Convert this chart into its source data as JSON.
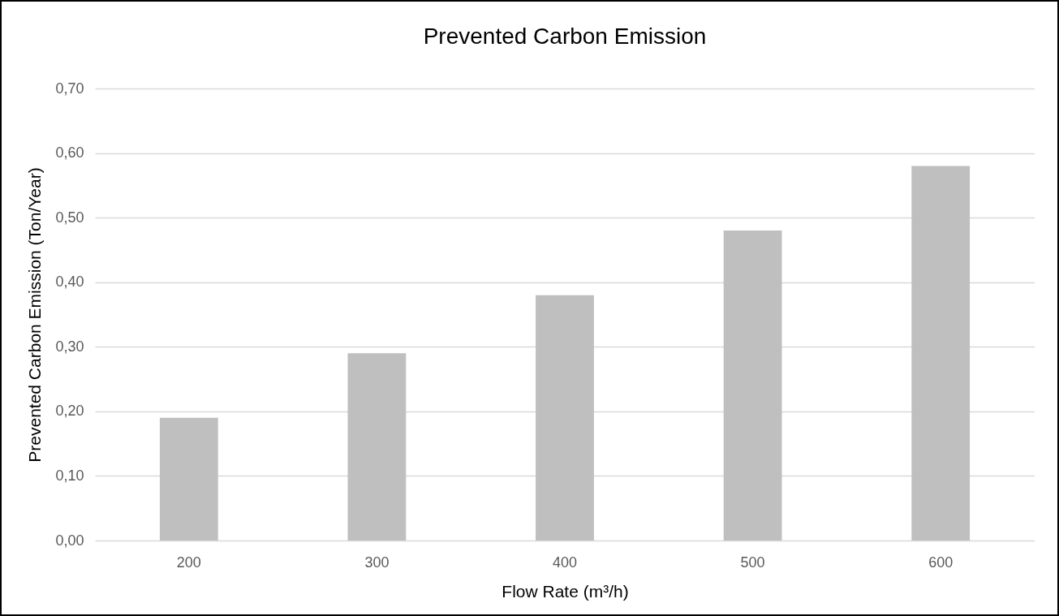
{
  "chart_data": {
    "type": "bar",
    "title": "Prevented Carbon Emission",
    "xlabel": "Flow Rate (m³/h)",
    "ylabel": "Prevented Carbon Emission (Ton/Year)",
    "categories": [
      "200",
      "300",
      "400",
      "500",
      "600"
    ],
    "values": [
      0.19,
      0.29,
      0.38,
      0.48,
      0.58
    ],
    "color": "#bfbfbf",
    "ylim": [
      0,
      0.7
    ],
    "yticks": [
      {
        "value": 0,
        "label": "0,00"
      },
      {
        "value": 0.1,
        "label": "0,10"
      },
      {
        "value": 0.2,
        "label": "0,20"
      },
      {
        "value": 0.3,
        "label": "0,30"
      },
      {
        "value": 0.4,
        "label": "0,40"
      },
      {
        "value": 0.5,
        "label": "0,50"
      },
      {
        "value": 0.6,
        "label": "0,60"
      },
      {
        "value": 0.7,
        "label": "0,70"
      }
    ],
    "grid": "y"
  }
}
